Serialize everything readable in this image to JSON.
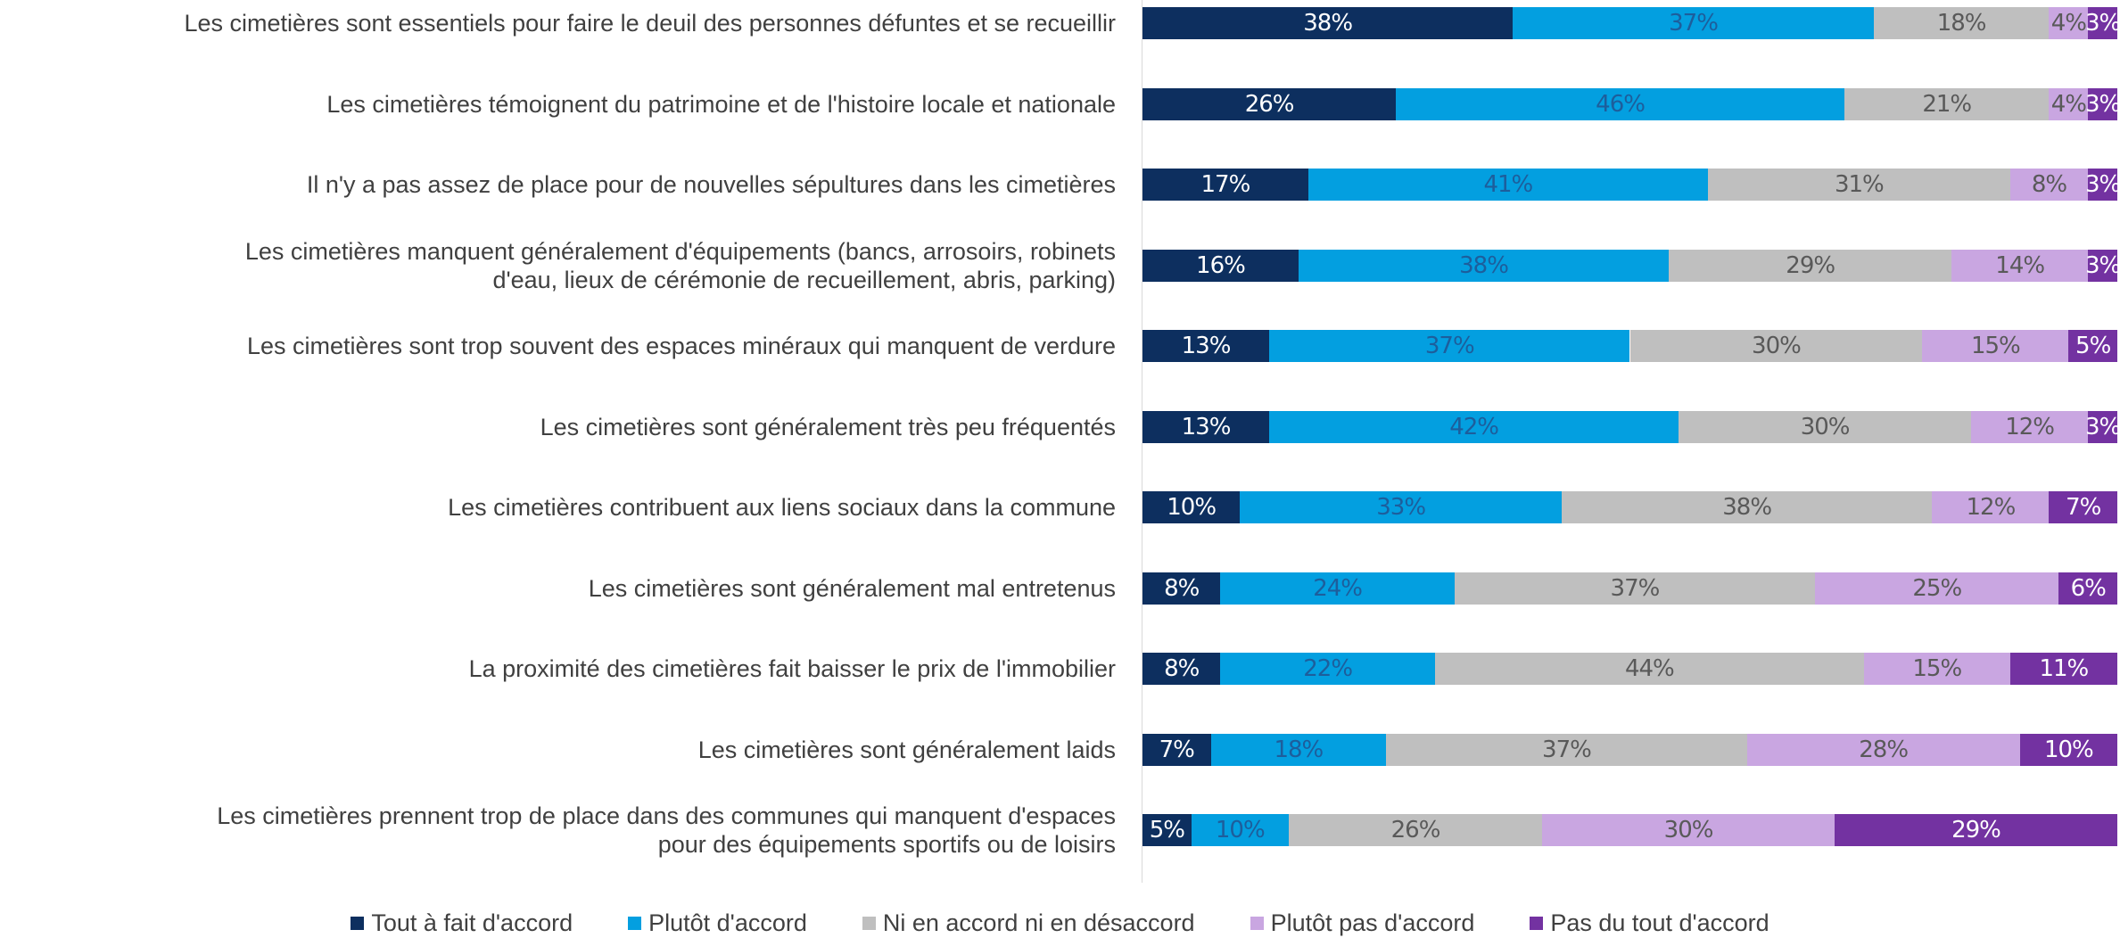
{
  "chart_data": {
    "type": "stacked-bar-horizontal",
    "categories": [
      "Les cimetières sont essentiels pour faire le deuil des personnes défuntes et se recueillir",
      "Les cimetières témoignent du patrimoine et de l'histoire locale et nationale",
      "Il n'y a pas assez de place pour de nouvelles sépultures dans les cimetières",
      "Les cimetières manquent généralement d'équipements (bancs, arrosoirs, robinets\nd'eau, lieux de cérémonie de recueillement, abris, parking)",
      "Les cimetières sont trop souvent des espaces minéraux qui manquent de verdure",
      "Les cimetières sont généralement très peu fréquentés",
      "Les cimetières contribuent aux liens sociaux dans la commune",
      "Les cimetières sont généralement mal entretenus",
      "La proximité des cimetières fait baisser le prix de l'immobilier",
      "Les cimetières sont généralement laids",
      "Les cimetières prennent trop de place dans des communes qui manquent d'espaces\npour des équipements sportifs ou de loisirs"
    ],
    "xlim": [
      0,
      100
    ],
    "series": [
      {
        "name": "Tout à fait d'accord",
        "color": "#0d2f5f",
        "values": [
          38,
          26,
          17,
          16,
          13,
          13,
          10,
          8,
          8,
          7,
          5
        ],
        "value_labels": [
          "38%",
          "26%",
          "17%",
          "16%",
          "13%",
          "13%",
          "10%",
          "8%",
          "8%",
          "7%",
          "5%"
        ]
      },
      {
        "name": "Plutôt d'accord",
        "color": "#039fe0",
        "values": [
          37,
          46,
          41,
          38,
          37,
          42,
          33,
          24,
          22,
          18,
          10
        ],
        "value_labels": [
          "37%",
          "46%",
          "41%",
          "38%",
          "37%",
          "42%",
          "33%",
          "24%",
          "22%",
          "18%",
          "10%"
        ]
      },
      {
        "name": "Ni en accord ni en désaccord",
        "color": "#bfbfbf",
        "values": [
          18,
          21,
          31,
          29,
          30,
          30,
          38,
          37,
          44,
          37,
          26
        ],
        "value_labels": [
          "18%",
          "21%",
          "31%",
          "29%",
          "30%",
          "30%",
          "38%",
          "37%",
          "44%",
          "37%",
          "26%"
        ]
      },
      {
        "name": "Plutôt pas d'accord",
        "color": "#c9a6e1",
        "values": [
          4,
          4,
          8,
          14,
          15,
          12,
          12,
          25,
          15,
          28,
          30
        ],
        "value_labels": [
          "4%",
          "4%",
          "8%",
          "14%",
          "15%",
          "12%",
          "12%",
          "25%",
          "15%",
          "28%",
          "30%"
        ]
      },
      {
        "name": "Pas du tout d'accord",
        "color": "#7332a1",
        "values": [
          3,
          3,
          3,
          3,
          5,
          3,
          7,
          6,
          11,
          10,
          29
        ],
        "value_labels": [
          "3%",
          "3%",
          "3%",
          "3%",
          "5%",
          "3%",
          "7%",
          "6%",
          "11%",
          "10%",
          "29%"
        ]
      }
    ]
  }
}
